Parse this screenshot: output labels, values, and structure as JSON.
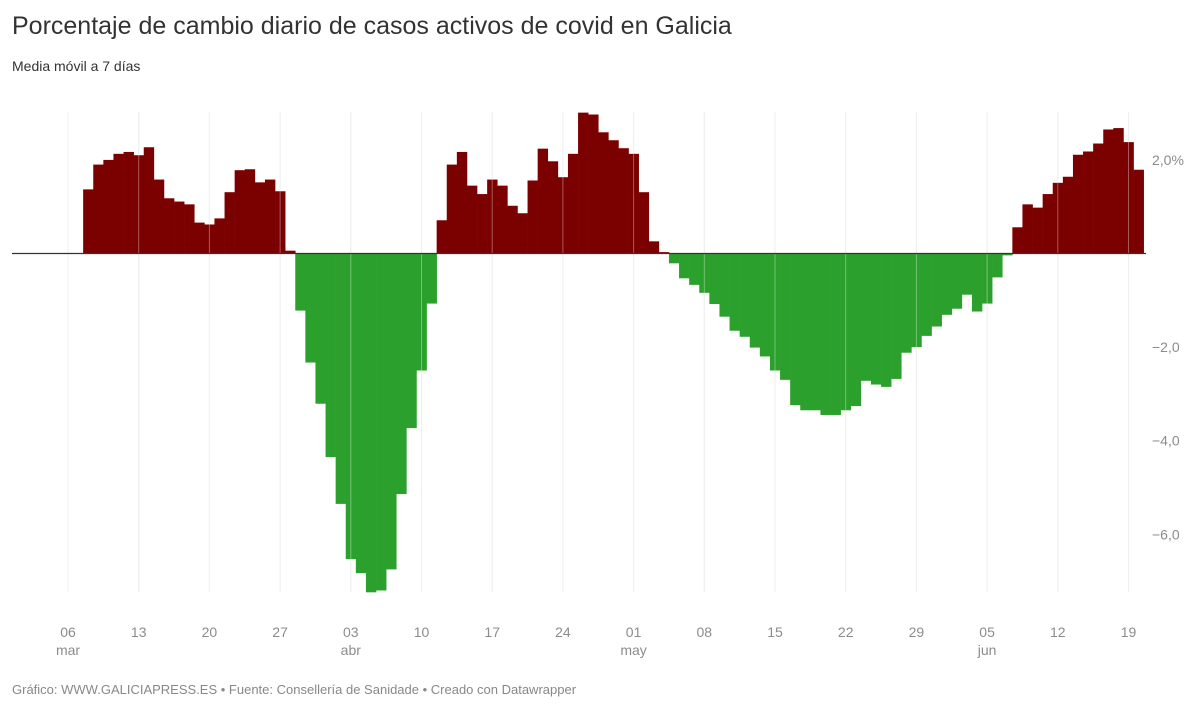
{
  "header": {
    "title": "Porcentaje de cambio diario de casos activos de covid en Galicia",
    "subtitle": "Media móvil a 7 días"
  },
  "footer": {
    "text": "Gráfico: WWW.GALICIAPRESS.ES • Fuente: Consellería de Sanidade • Creado con Datawrapper"
  },
  "colors": {
    "positive": "#7b0000",
    "negative": "#2ca02c",
    "grid": "#e6e6e6",
    "axis_text": "#8c8c8c",
    "baseline": "#333333"
  },
  "chart_data": {
    "type": "bar",
    "title": "Porcentaje de cambio diario de casos activos de covid en Galicia",
    "subtitle": "Media móvil a 7 días",
    "xlabel": "",
    "ylabel": "",
    "start_date": "08 mar",
    "end_date": "20 jun",
    "ylim": [
      -7.3,
      3.05
    ],
    "y_ticks": [
      {
        "value": 2,
        "label": "2,0%"
      },
      {
        "value": -2,
        "label": "−2,0"
      },
      {
        "value": -4,
        "label": "−4,0"
      },
      {
        "value": -6,
        "label": "−6,0"
      }
    ],
    "x_ticks": [
      {
        "day": 0,
        "label": "06",
        "month": "mar"
      },
      {
        "day": 7,
        "label": "13",
        "month": ""
      },
      {
        "day": 14,
        "label": "20",
        "month": ""
      },
      {
        "day": 21,
        "label": "27",
        "month": ""
      },
      {
        "day": 28,
        "label": "03",
        "month": "abr"
      },
      {
        "day": 35,
        "label": "10",
        "month": ""
      },
      {
        "day": 42,
        "label": "17",
        "month": ""
      },
      {
        "day": 49,
        "label": "24",
        "month": ""
      },
      {
        "day": 56,
        "label": "01",
        "month": "may"
      },
      {
        "day": 63,
        "label": "08",
        "month": ""
      },
      {
        "day": 70,
        "label": "15",
        "month": ""
      },
      {
        "day": 77,
        "label": "22",
        "month": ""
      },
      {
        "day": 84,
        "label": "29",
        "month": ""
      },
      {
        "day": 91,
        "label": "05",
        "month": "jun"
      },
      {
        "day": 98,
        "label": "12",
        "month": ""
      },
      {
        "day": 105,
        "label": "19",
        "month": ""
      }
    ],
    "first_bar_day": 2,
    "grid": true,
    "legend": "none",
    "values": [
      1.37,
      1.9,
      2.0,
      2.13,
      2.17,
      2.1,
      2.27,
      1.58,
      1.18,
      1.11,
      1.05,
      0.66,
      0.62,
      0.75,
      1.31,
      1.78,
      1.8,
      1.52,
      1.58,
      1.33,
      0.06,
      -1.22,
      -2.33,
      -3.21,
      -4.35,
      -5.35,
      -6.53,
      -6.83,
      -7.24,
      -7.2,
      -6.75,
      -5.14,
      -3.73,
      -2.5,
      -1.07,
      0.71,
      1.9,
      2.17,
      1.45,
      1.27,
      1.58,
      1.45,
      1.02,
      0.86,
      1.56,
      2.24,
      1.97,
      1.63,
      2.13,
      3.01,
      2.97,
      2.59,
      2.42,
      2.25,
      2.13,
      1.31,
      0.26,
      0.03,
      -0.21,
      -0.53,
      -0.67,
      -0.84,
      -1.08,
      -1.35,
      -1.65,
      -1.78,
      -2.01,
      -2.2,
      -2.5,
      -2.7,
      -3.24,
      -3.35,
      -3.35,
      -3.45,
      -3.45,
      -3.35,
      -3.26,
      -2.72,
      -2.8,
      -2.85,
      -2.68,
      -2.12,
      -2.0,
      -1.76,
      -1.56,
      -1.31,
      -1.18,
      -0.88,
      -1.24,
      -1.07,
      -0.51,
      -0.04,
      0.56,
      1.05,
      0.98,
      1.27,
      1.51,
      1.64,
      2.11,
      2.18,
      2.35,
      2.65,
      2.68,
      2.38,
      1.79
    ]
  }
}
